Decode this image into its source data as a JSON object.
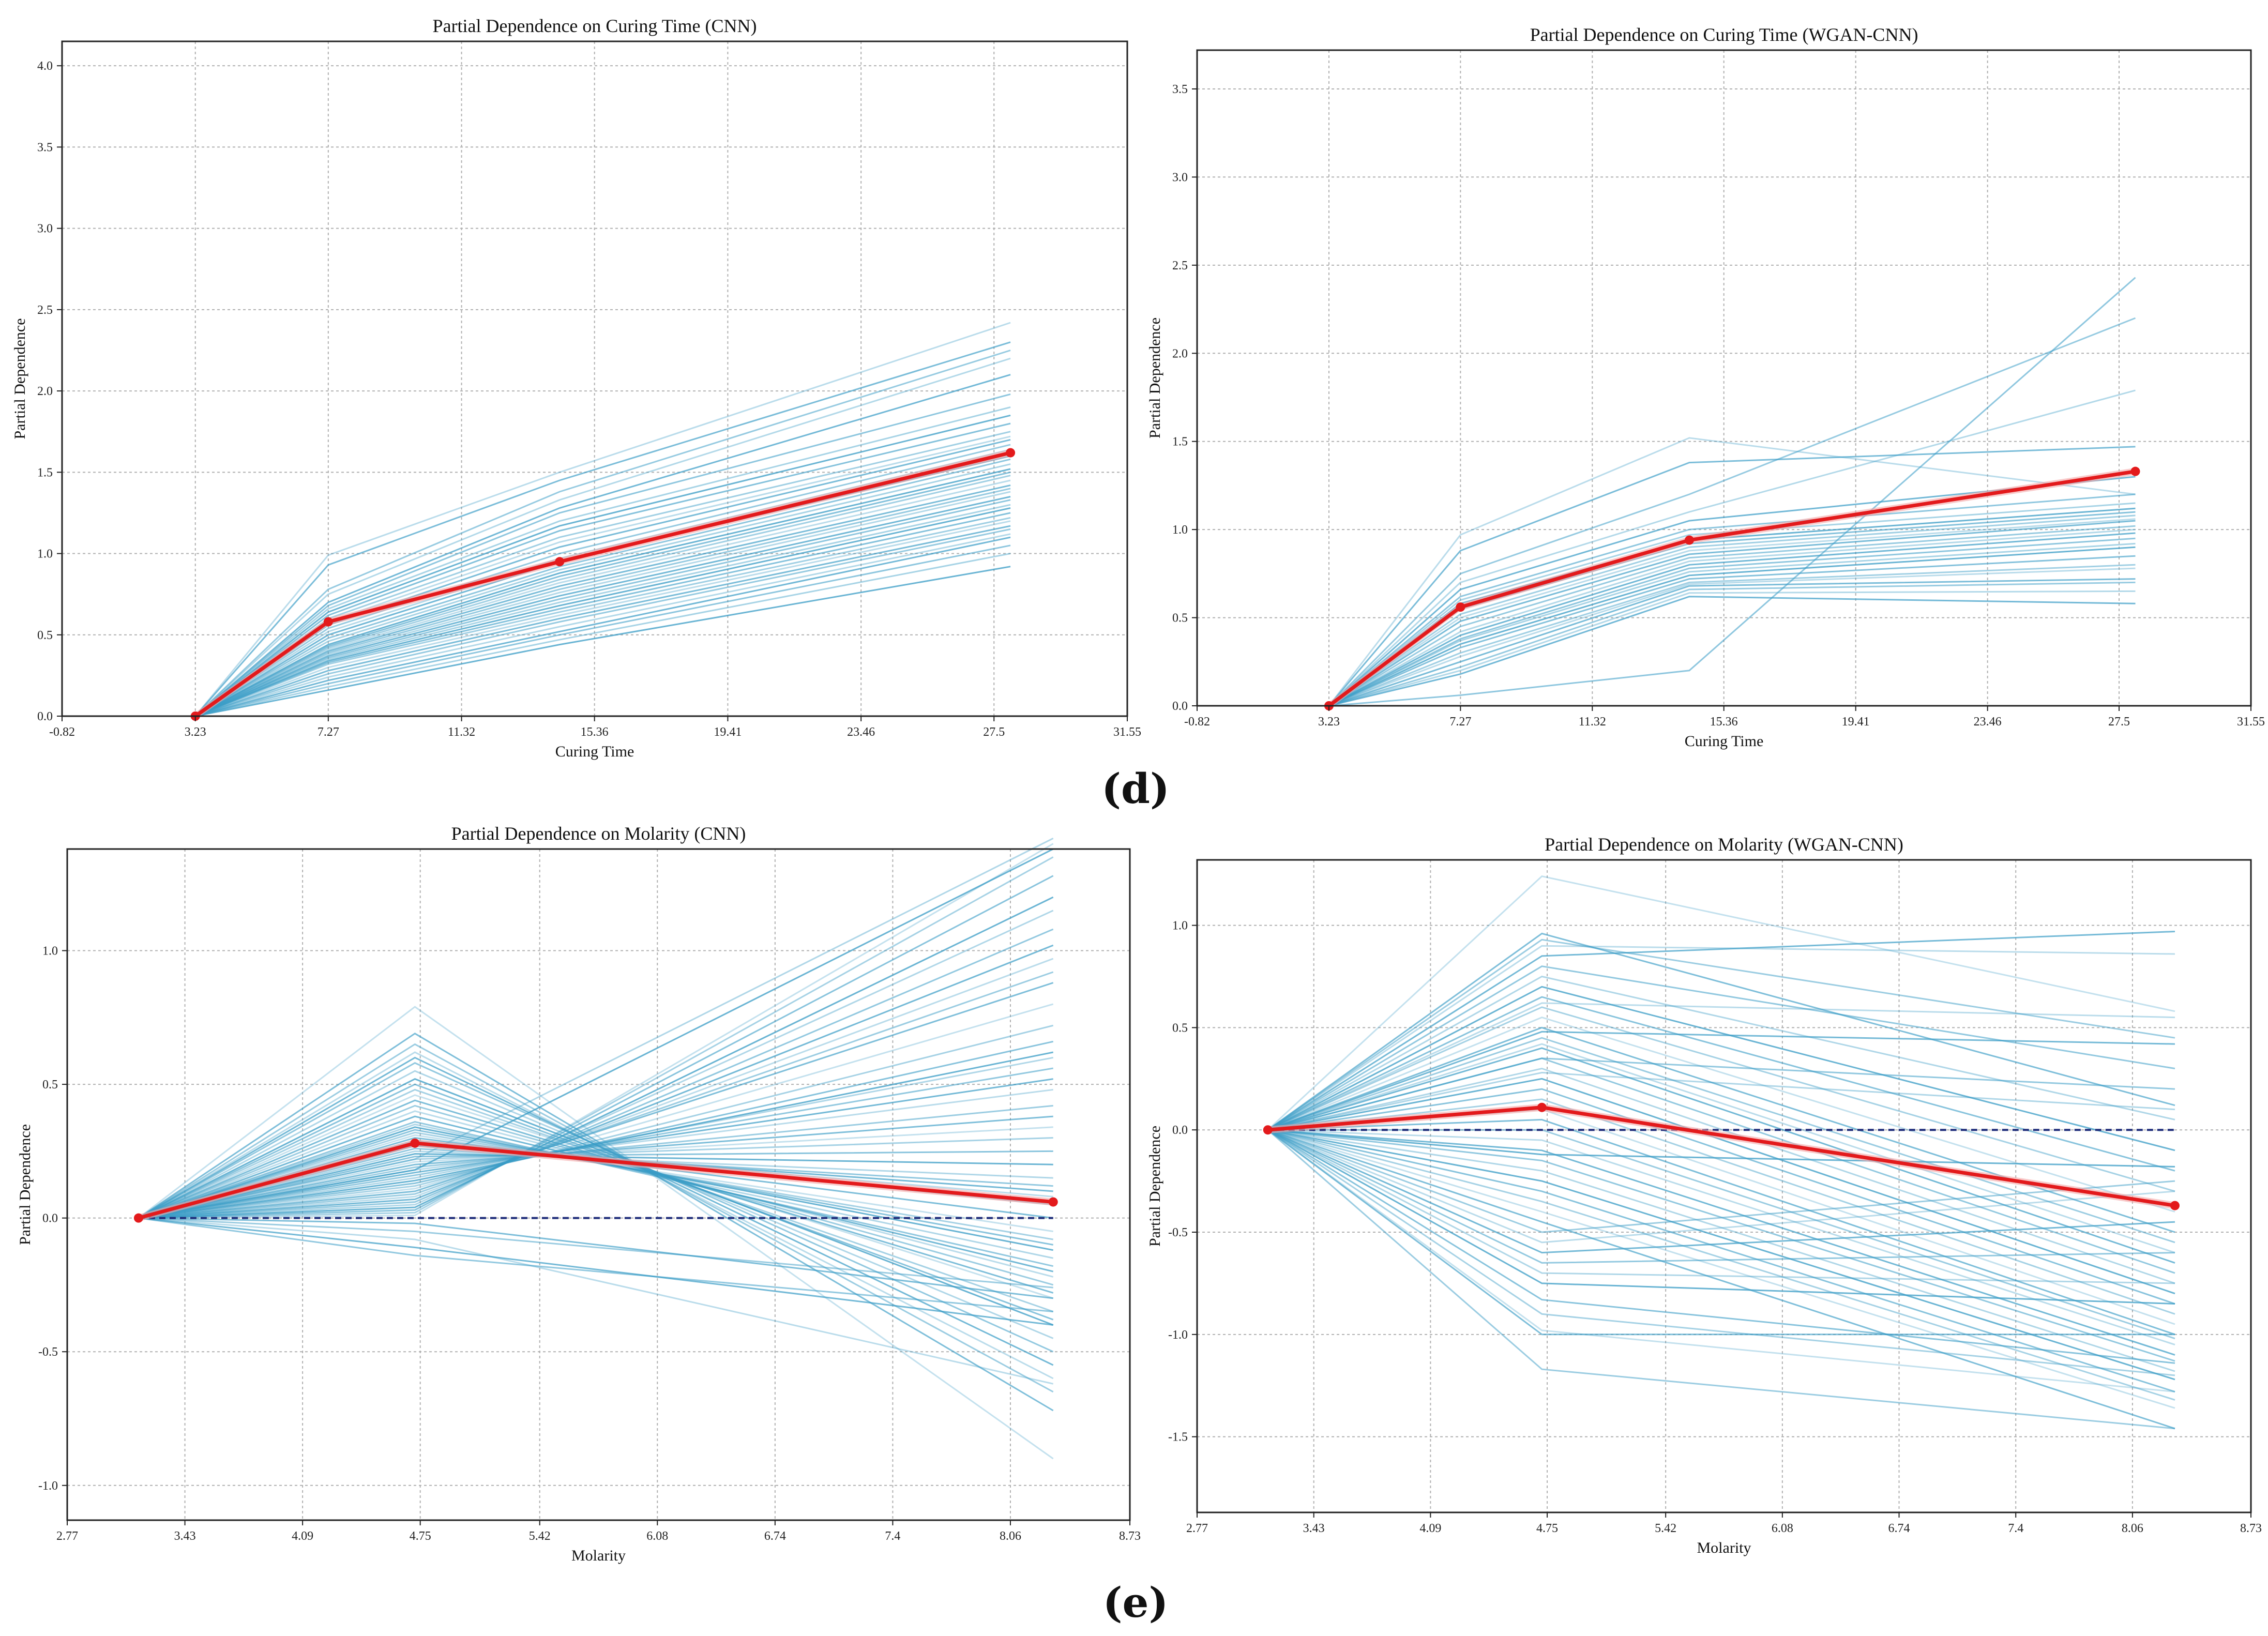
{
  "panel_labels": {
    "d": "(d)",
    "e": "(e)"
  },
  "colors": {
    "ice": "#3a9cc6",
    "mean": "#e31a1c",
    "zero": "#1f2d7a",
    "grid": "#b0b0b0",
    "axis": "#222222"
  },
  "chart_data": [
    {
      "type": "line",
      "title": "Partial Dependence on Curing Time (CNN)",
      "xlabel": "Curing Time",
      "ylabel": "Partial Dependence",
      "xlim": [
        -0.82,
        31.55
      ],
      "ylim": [
        0,
        4.15
      ],
      "xticks": [
        -0.82,
        3.23,
        7.27,
        11.32,
        15.36,
        19.41,
        23.46,
        27.5,
        31.55
      ],
      "xtick_labels": [
        "-0.82",
        "3.23",
        "7.27",
        "11.32",
        "15.36",
        "19.41",
        "23.46",
        "27.5",
        "31.55"
      ],
      "yticks": [
        0,
        0.5,
        1.0,
        1.5,
        2.0,
        2.5,
        3.0,
        3.5,
        4.0
      ],
      "ytick_labels": [
        "0.0",
        "0.5",
        "1.0",
        "1.5",
        "2.0",
        "2.5",
        "3.0",
        "3.5",
        "4.0"
      ],
      "grid": true,
      "zero_line": false,
      "ice_x": [
        3.23,
        7.27,
        14.3,
        28.0
      ],
      "mean": {
        "x": [
          3.23,
          7.27,
          14.3,
          28.0
        ],
        "y": [
          0,
          0.58,
          0.95,
          1.62
        ]
      },
      "ice_y1": [
        0.99,
        0.93,
        0.78,
        0.75,
        0.7,
        0.68,
        0.66,
        0.64,
        0.62,
        0.6,
        0.58,
        0.56,
        0.54,
        0.52,
        0.5,
        0.48,
        0.46,
        0.44,
        0.43,
        0.42,
        0.41,
        0.4,
        0.39,
        0.38,
        0.37,
        0.36,
        0.35,
        0.34,
        0.33,
        0.32,
        0.3,
        0.28,
        0.26,
        0.24,
        0.22,
        0.2,
        0.18,
        0.16
      ],
      "ice_y2": [
        1.5,
        1.45,
        1.38,
        1.33,
        1.28,
        1.25,
        1.2,
        1.17,
        1.14,
        1.1,
        1.07,
        1.04,
        1.0,
        0.97,
        0.95,
        0.92,
        0.9,
        0.88,
        0.86,
        0.84,
        0.82,
        0.8,
        0.78,
        0.76,
        0.74,
        0.72,
        0.7,
        0.68,
        0.66,
        0.64,
        0.62,
        0.6,
        0.58,
        0.55,
        0.52,
        0.5,
        0.47,
        0.44
      ],
      "ice_y3": [
        2.42,
        2.3,
        2.25,
        2.2,
        2.1,
        1.98,
        1.9,
        1.85,
        1.8,
        1.75,
        1.72,
        1.7,
        1.67,
        1.64,
        1.6,
        1.58,
        1.55,
        1.52,
        1.5,
        1.48,
        1.45,
        1.42,
        1.4,
        1.38,
        1.35,
        1.33,
        1.3,
        1.28,
        1.25,
        1.22,
        1.2,
        1.17,
        1.15,
        1.12,
        1.1,
        1.05,
        1.0,
        0.92
      ]
    },
    {
      "type": "line",
      "title": "Partial Dependence on Curing Time (WGAN-CNN)",
      "xlabel": "Curing Time",
      "ylabel": "Partial Dependence",
      "xlim": [
        -0.82,
        31.55
      ],
      "ylim": [
        0,
        3.72
      ],
      "xticks": [
        -0.82,
        3.23,
        7.27,
        11.32,
        15.36,
        19.41,
        23.46,
        27.5,
        31.55
      ],
      "xtick_labels": [
        "-0.82",
        "3.23",
        "7.27",
        "11.32",
        "15.36",
        "19.41",
        "23.46",
        "27.5",
        "31.55"
      ],
      "yticks": [
        0,
        0.5,
        1.0,
        1.5,
        2.0,
        2.5,
        3.0,
        3.5
      ],
      "ytick_labels": [
        "0.0",
        "0.5",
        "1.0",
        "1.5",
        "2.0",
        "2.5",
        "3.0",
        "3.5"
      ],
      "grid": true,
      "zero_line": false,
      "ice_x": [
        3.23,
        7.27,
        14.3,
        28.0
      ],
      "mean": {
        "x": [
          3.23,
          7.27,
          14.3,
          28.0
        ],
        "y": [
          0,
          0.56,
          0.94,
          1.33
        ]
      },
      "ice_y1": [
        0.97,
        0.88,
        0.75,
        0.7,
        0.66,
        0.62,
        0.6,
        0.58,
        0.55,
        0.52,
        0.5,
        0.48,
        0.45,
        0.42,
        0.4,
        0.38,
        0.37,
        0.35,
        0.33,
        0.3,
        0.28,
        0.25,
        0.22,
        0.2,
        0.18,
        0.06
      ],
      "ice_y2": [
        1.52,
        1.38,
        1.2,
        1.1,
        1.05,
        1.0,
        0.97,
        0.94,
        0.92,
        0.9,
        0.88,
        0.86,
        0.84,
        0.82,
        0.8,
        0.78,
        0.76,
        0.74,
        0.72,
        0.7,
        0.69,
        0.68,
        0.66,
        0.64,
        0.62,
        0.2
      ],
      "ice_y3": [
        1.2,
        1.47,
        2.2,
        1.79,
        1.3,
        1.2,
        1.15,
        1.12,
        1.1,
        1.08,
        1.06,
        1.05,
        1.02,
        1.0,
        0.98,
        0.95,
        0.92,
        0.9,
        0.85,
        0.8,
        0.78,
        0.72,
        0.7,
        0.65,
        0.58,
        2.43
      ]
    },
    {
      "type": "line",
      "title": "Partial Dependence on Molarity (CNN)",
      "xlabel": "Molarity",
      "ylabel": "Partial Dependence",
      "xlim": [
        2.77,
        8.73
      ],
      "ylim": [
        -1.13,
        1.38
      ],
      "xticks": [
        2.77,
        3.43,
        4.09,
        4.75,
        5.42,
        6.08,
        6.74,
        7.4,
        8.06,
        8.73
      ],
      "xtick_labels": [
        "2.77",
        "3.43",
        "4.09",
        "4.75",
        "5.42",
        "6.08",
        "6.74",
        "7.4",
        "8.06",
        "8.73"
      ],
      "yticks": [
        -1.0,
        -0.5,
        0,
        0.5,
        1.0
      ],
      "ytick_labels": [
        "-1.0",
        "-0.5",
        "0.0",
        "0.5",
        "1.0"
      ],
      "grid": true,
      "zero_line": true,
      "ice_x": [
        3.17,
        4.72,
        8.3
      ],
      "mean": {
        "x": [
          3.17,
          4.72,
          8.3
        ],
        "y": [
          0,
          0.28,
          0.06
        ]
      },
      "ice_y1": [
        0.79,
        0.69,
        0.65,
        0.62,
        0.6,
        0.58,
        0.55,
        0.52,
        0.5,
        0.48,
        0.46,
        0.44,
        0.42,
        0.4,
        0.38,
        0.36,
        0.35,
        0.34,
        0.33,
        0.32,
        0.31,
        0.3,
        0.29,
        0.28,
        0.27,
        0.26,
        0.25,
        0.24,
        0.23,
        0.22,
        0.21,
        0.2,
        0.19,
        0.18,
        0.17,
        0.16,
        0.15,
        0.14,
        0.13,
        0.12,
        0.11,
        0.1,
        0.09,
        0.08,
        0.07,
        0.06,
        0.05,
        0.04,
        0.03,
        0.02,
        0.01,
        -0.02,
        -0.05,
        -0.08,
        -0.11,
        -0.14,
        0.22,
        0.18
      ],
      "ice_y2": [
        -0.9,
        -0.72,
        -0.65,
        -0.6,
        -0.55,
        -0.5,
        -0.45,
        -0.4,
        -0.38,
        -0.35,
        -0.3,
        -0.28,
        -0.25,
        -0.22,
        -0.2,
        -0.18,
        -0.15,
        -0.12,
        -0.1,
        -0.08,
        -0.05,
        0.0,
        0.05,
        0.08,
        0.1,
        0.12,
        0.15,
        0.2,
        0.25,
        0.3,
        0.34,
        0.38,
        0.42,
        0.48,
        0.52,
        0.56,
        0.6,
        0.62,
        0.66,
        0.72,
        0.8,
        0.88,
        0.92,
        0.97,
        1.02,
        1.08,
        1.15,
        1.2,
        1.28,
        1.35,
        1.4,
        -0.3,
        -0.26,
        -0.62,
        -0.4,
        -0.35,
        1.42,
        1.38
      ]
    },
    {
      "type": "line",
      "title": "Partial Dependence on Molarity (WGAN-CNN)",
      "xlabel": "Molarity",
      "ylabel": "Partial Dependence",
      "xlim": [
        2.77,
        8.73
      ],
      "ylim": [
        -1.87,
        1.32
      ],
      "xticks": [
        2.77,
        3.43,
        4.09,
        4.75,
        5.42,
        6.08,
        6.74,
        7.4,
        8.06,
        8.73
      ],
      "xtick_labels": [
        "2.77",
        "3.43",
        "4.09",
        "4.75",
        "5.42",
        "6.08",
        "6.74",
        "7.4",
        "8.06",
        "8.73"
      ],
      "yticks": [
        -1.5,
        -1.0,
        -0.5,
        0,
        0.5,
        1.0
      ],
      "ytick_labels": [
        "-1.5",
        "-1.0",
        "-0.5",
        "0.0",
        "0.5",
        "1.0"
      ],
      "grid": true,
      "zero_line": true,
      "ice_x": [
        3.17,
        4.72,
        8.3
      ],
      "mean": {
        "x": [
          3.17,
          4.72,
          8.3
        ],
        "y": [
          0,
          0.11,
          -0.37
        ]
      },
      "ice_y1": [
        1.24,
        0.96,
        0.93,
        0.9,
        0.85,
        0.8,
        0.75,
        0.7,
        0.65,
        0.6,
        0.55,
        0.5,
        0.45,
        0.42,
        0.4,
        0.35,
        0.3,
        0.25,
        0.2,
        0.15,
        0.1,
        0.05,
        0.0,
        -0.05,
        -0.1,
        -0.15,
        -0.2,
        -0.25,
        -0.3,
        -0.35,
        -0.4,
        -0.45,
        -0.5,
        -0.55,
        -0.6,
        -0.65,
        -0.7,
        -0.75,
        -0.83,
        -0.9,
        -0.98,
        -1.0,
        -1.17,
        0.62,
        0.48,
        0.35,
        0.28,
        -0.12
      ],
      "ice_y2": [
        0.58,
        0.12,
        0.45,
        0.86,
        0.97,
        0.3,
        0.05,
        -0.1,
        -0.2,
        -0.3,
        -0.4,
        -0.5,
        -0.55,
        -0.6,
        -0.65,
        -0.7,
        -0.75,
        -0.8,
        -0.85,
        -0.9,
        -0.95,
        -1.0,
        -1.02,
        -1.05,
        -1.1,
        -1.13,
        -1.18,
        -1.22,
        -1.28,
        -1.32,
        -1.36,
        -1.46,
        -0.25,
        -0.3,
        -0.45,
        -0.6,
        -0.75,
        -0.85,
        -1.14,
        -1.2,
        -1.28,
        -1.0,
        -1.46,
        0.55,
        0.42,
        0.2,
        0.1,
        -0.18
      ]
    }
  ]
}
